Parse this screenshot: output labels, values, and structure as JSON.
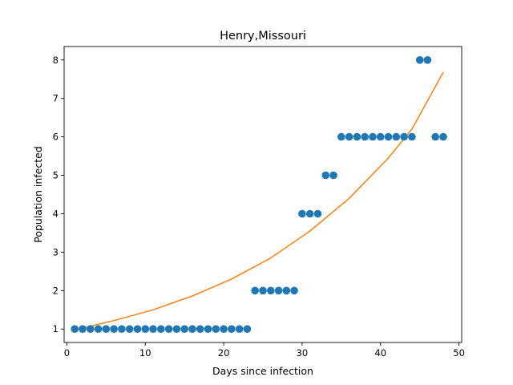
{
  "chart_data": {
    "type": "scatter",
    "title": "Henry,Missouri",
    "xlabel": "Days since infection",
    "ylabel": "Population infected",
    "xlim": [
      -0.35,
      50.35
    ],
    "ylim": [
      0.65,
      8.35
    ],
    "xticks": [
      0,
      10,
      20,
      30,
      40,
      50
    ],
    "yticks": [
      1,
      2,
      3,
      4,
      5,
      6,
      7,
      8
    ],
    "grid": false,
    "series": [
      {
        "kind": "scatter",
        "color": "#1f77b4",
        "x": [
          1,
          2,
          3,
          4,
          5,
          6,
          7,
          8,
          9,
          10,
          11,
          12,
          13,
          14,
          15,
          16,
          17,
          18,
          19,
          20,
          21,
          22,
          23,
          24,
          25,
          26,
          27,
          28,
          29,
          30,
          31,
          32,
          33,
          34,
          35,
          36,
          37,
          38,
          39,
          40,
          41,
          42,
          43,
          44,
          45,
          46,
          47,
          48
        ],
        "y": [
          1,
          1,
          1,
          1,
          1,
          1,
          1,
          1,
          1,
          1,
          1,
          1,
          1,
          1,
          1,
          1,
          1,
          1,
          1,
          1,
          1,
          1,
          1,
          2,
          2,
          2,
          2,
          2,
          2,
          4,
          4,
          4,
          5,
          5,
          6,
          6,
          6,
          6,
          6,
          6,
          6,
          6,
          6,
          6,
          8,
          8,
          6,
          6
        ]
      },
      {
        "kind": "line",
        "color": "#ff7f0e",
        "x": [
          1,
          6,
          11,
          16,
          21,
          26,
          31,
          36,
          41,
          44,
          48
        ],
        "y": [
          0.98,
          1.22,
          1.5,
          1.86,
          2.3,
          2.85,
          3.55,
          4.4,
          5.45,
          6.2,
          7.68
        ]
      }
    ]
  }
}
